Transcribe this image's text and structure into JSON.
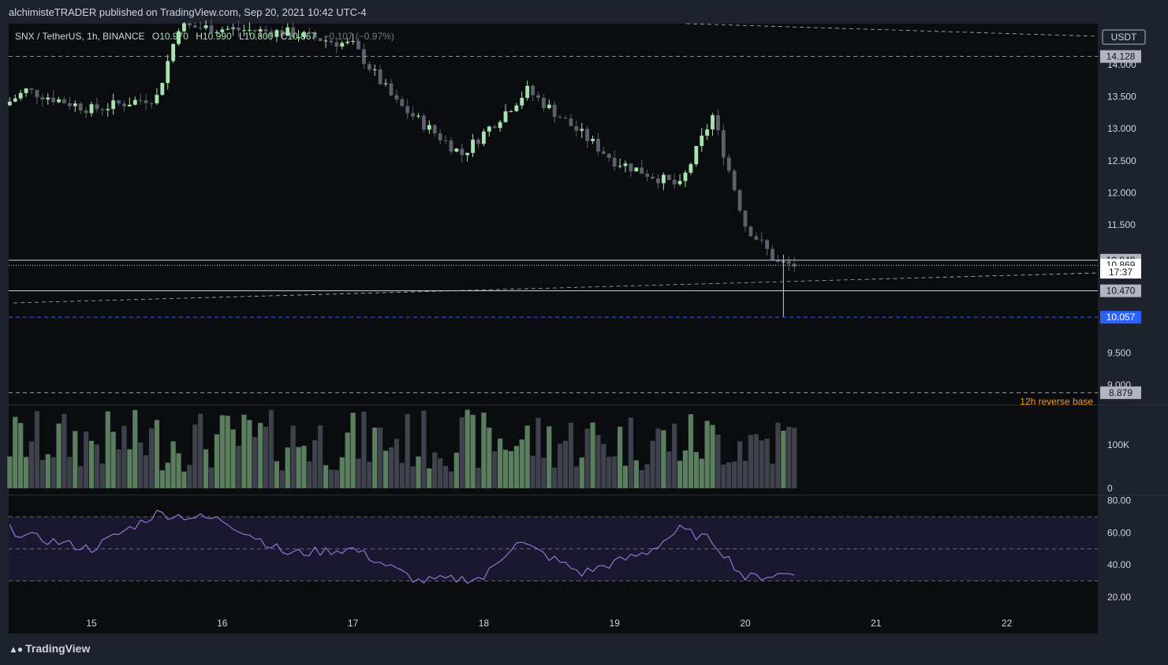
{
  "header": {
    "published": "alchimisteTRADER published on TradingView.com, Sep 20, 2021 10:42 UTC-4"
  },
  "legend": {
    "symbol": "SNX / TetherUS, 1h, BINANCE",
    "o_label": "O",
    "o_value": "10.970",
    "h_label": "H",
    "h_value": "10.990",
    "l_label": "L",
    "l_value": "10.800",
    "c_label": "C",
    "c_value": "10.867",
    "change": "−0.107 (−0.97%)"
  },
  "currency_badge": "USDT",
  "brand": "TradingView",
  "price_axis": {
    "ticks": [
      "14.000",
      "13.500",
      "13.000",
      "12.500",
      "12.000",
      "11.500",
      "9.500",
      "9.000"
    ],
    "tick_values": [
      14.0,
      13.5,
      13.0,
      12.5,
      12.0,
      11.5,
      9.5,
      9.0
    ]
  },
  "price_labels": [
    {
      "value": "14.128",
      "price": 14.128,
      "style": "gray"
    },
    {
      "value": "10.948",
      "price": 10.948,
      "style": "gray"
    },
    {
      "value": "10.869",
      "price": 10.869,
      "style": "white"
    },
    {
      "value": "17:37",
      "price": 10.76,
      "style": "white"
    },
    {
      "value": "10.470",
      "price": 10.47,
      "style": "gray"
    },
    {
      "value": "10.057",
      "price": 10.057,
      "style": "blue"
    },
    {
      "value": "8.879",
      "price": 8.879,
      "style": "gray"
    }
  ],
  "annotation": {
    "text": "12h reverse base",
    "color": "#ff9800"
  },
  "volume_axis": {
    "ticks": [
      "100K",
      "0"
    ],
    "tick_values": [
      100000,
      0
    ]
  },
  "rsi_axis": {
    "ticks": [
      "80.00",
      "60.00",
      "40.00",
      "20.00"
    ],
    "tick_values": [
      80,
      60,
      40,
      20
    ],
    "upper": 70,
    "mid": 50,
    "lower": 30
  },
  "time_axis": {
    "ticks": [
      "15",
      "16",
      "17",
      "18",
      "19",
      "20",
      "21",
      "22"
    ]
  },
  "colors": {
    "bull": "#a7e3ad",
    "bear": "#5d606b",
    "bull_vol": "#5b7f5e",
    "bear_vol": "#3f424c",
    "rsi": "#9575cd",
    "blue": "#2962ff",
    "annotation": "#ff9800"
  },
  "chart_data": {
    "type": "candlestick",
    "symbol": "SNX / TetherUS",
    "interval": "1h",
    "exchange": "BINANCE",
    "quote": "USDT",
    "x_range": [
      "2021-09-14",
      "2021-09-22"
    ],
    "y_range": [
      8.9,
      14.3
    ],
    "horizontal_levels": [
      14.128,
      10.948,
      10.869,
      10.47,
      10.057,
      8.879
    ],
    "close_keypoints": [
      {
        "t": "2021-09-14 00:00",
        "close": 12.9
      },
      {
        "t": "2021-09-14 12:00",
        "close": 13.6
      },
      {
        "t": "2021-09-15 00:00",
        "close": 13.3
      },
      {
        "t": "2021-09-15 12:00",
        "close": 13.5
      },
      {
        "t": "2021-09-15 16:00",
        "close": 14.6
      },
      {
        "t": "2021-09-16 12:00",
        "close": 14.5
      },
      {
        "t": "2021-09-17 00:00",
        "close": 14.3
      },
      {
        "t": "2021-09-17 08:00",
        "close": 13.4
      },
      {
        "t": "2021-09-17 20:00",
        "close": 12.6
      },
      {
        "t": "2021-09-18 08:00",
        "close": 13.6
      },
      {
        "t": "2021-09-19 00:00",
        "close": 12.5
      },
      {
        "t": "2021-09-19 12:00",
        "close": 12.1
      },
      {
        "t": "2021-09-19 18:00",
        "close": 13.2
      },
      {
        "t": "2021-09-20 00:00",
        "close": 11.5
      },
      {
        "t": "2021-09-20 06:00",
        "close": 10.9
      },
      {
        "t": "2021-09-20 09:00",
        "close": 10.869
      }
    ],
    "volume_max": 190000,
    "rsi_keypoints": [
      {
        "t": "2021-09-14 00:00",
        "rsi": 75
      },
      {
        "t": "2021-09-14 12:00",
        "rsi": 58
      },
      {
        "t": "2021-09-15 00:00",
        "rsi": 50
      },
      {
        "t": "2021-09-15 12:00",
        "rsi": 72
      },
      {
        "t": "2021-09-16 00:00",
        "rsi": 68
      },
      {
        "t": "2021-09-16 12:00",
        "rsi": 47
      },
      {
        "t": "2021-09-17 00:00",
        "rsi": 50
      },
      {
        "t": "2021-09-17 12:00",
        "rsi": 30
      },
      {
        "t": "2021-09-18 00:00",
        "rsi": 32
      },
      {
        "t": "2021-09-18 06:00",
        "rsi": 55
      },
      {
        "t": "2021-09-18 18:00",
        "rsi": 35
      },
      {
        "t": "2021-09-19 06:00",
        "rsi": 48
      },
      {
        "t": "2021-09-19 12:00",
        "rsi": 62
      },
      {
        "t": "2021-09-19 18:00",
        "rsi": 55
      },
      {
        "t": "2021-09-20 00:00",
        "rsi": 32
      },
      {
        "t": "2021-09-20 09:00",
        "rsi": 35
      }
    ]
  }
}
